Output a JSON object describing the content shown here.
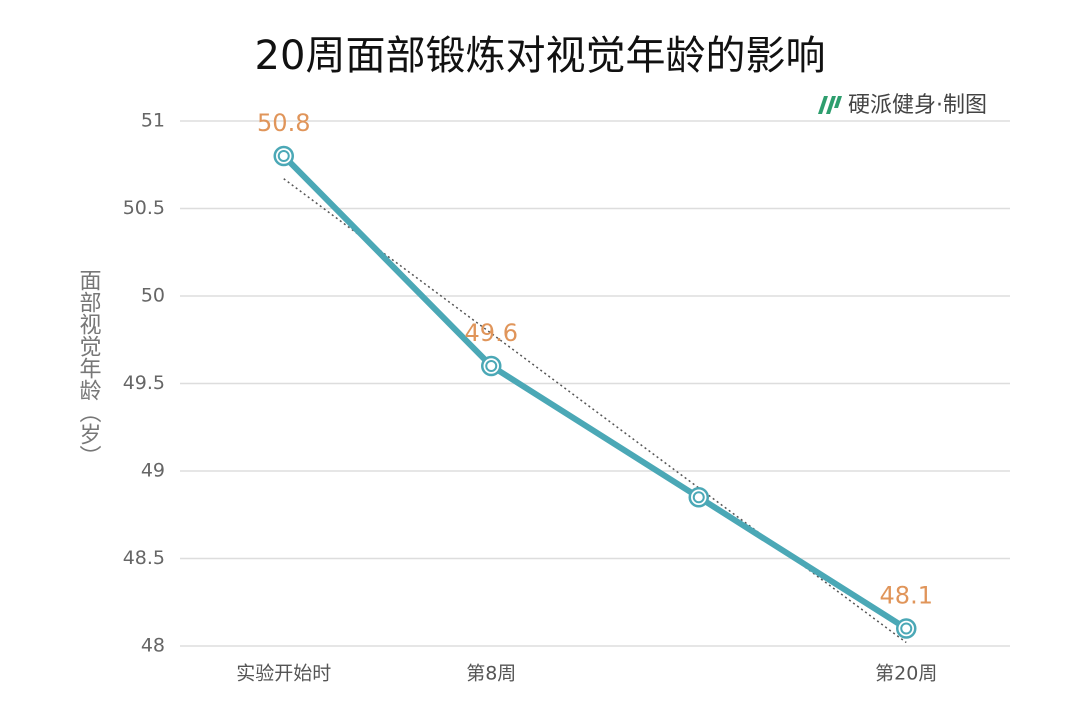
{
  "chart_data": {
    "type": "line",
    "title": "20周面部锻炼对视觉年龄的影响",
    "source": "硬派健身·制图",
    "y_label": "面部视觉年龄（岁）",
    "categories": [
      "实验开始时",
      "第8周",
      null,
      "第20周"
    ],
    "values": [
      50.8,
      49.6,
      48.85,
      48.1
    ],
    "value_labels": [
      "50.8",
      "49.6",
      null,
      "48.1"
    ],
    "color": "#4ba8b6",
    "label_color": "#e0955a",
    "trendline": {
      "start": 50.67,
      "end": 48.02
    },
    "ylim": [
      48,
      51
    ],
    "yticks": [
      48,
      48.5,
      49,
      49.5,
      50,
      50.5,
      51
    ],
    "grid": true
  }
}
